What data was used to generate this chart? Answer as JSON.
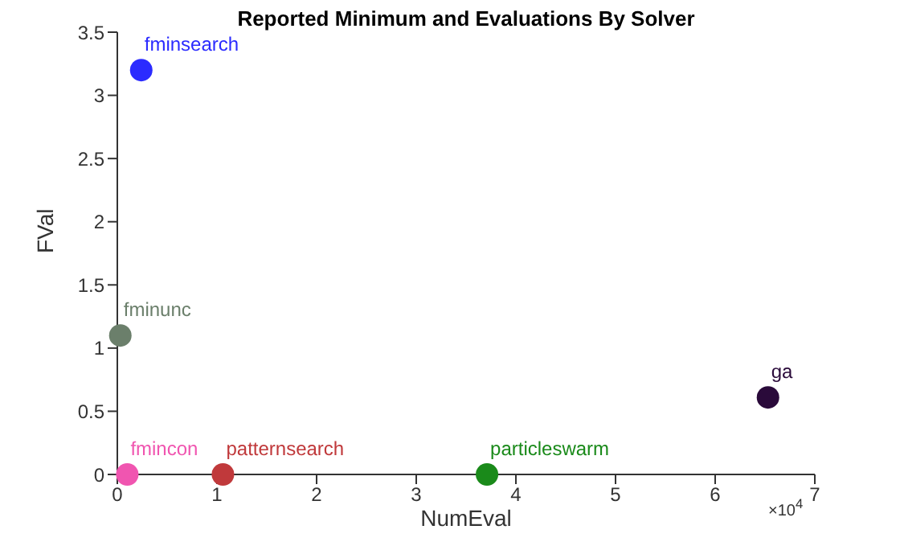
{
  "chart_data": {
    "type": "scatter",
    "title": "Reported Minimum and Evaluations By Solver",
    "xlabel": "NumEval",
    "ylabel": "FVal",
    "xlim": [
      0,
      7
    ],
    "xticks": [
      0,
      1,
      2,
      3,
      4,
      5,
      6,
      7
    ],
    "ylim": [
      0,
      3.5
    ],
    "yticks": [
      0,
      0.5,
      1,
      1.5,
      2,
      2.5,
      3,
      3.5
    ],
    "grid": false,
    "legend": false,
    "marker": "circle",
    "annotations": [
      "×10$^{4}$"
    ],
    "series": [
      {
        "name": "fminsearch",
        "color": "#2b2bff",
        "x": [
          0.24
        ],
        "values": [
          3.2
        ]
      },
      {
        "name": "fminunc",
        "color": "#6b7f6b",
        "x": [
          0.03
        ],
        "values": [
          1.1
        ]
      },
      {
        "name": "ga",
        "color": "#2a0a3a",
        "x": [
          6.53
        ],
        "values": [
          0.61
        ]
      },
      {
        "name": "fmincon",
        "color": "#f055b0",
        "x": [
          0.1
        ],
        "values": [
          0
        ]
      },
      {
        "name": "patternsearch",
        "color": "#c0393b",
        "x": [
          1.06
        ],
        "values": [
          0
        ]
      },
      {
        "name": "particleswarm",
        "color": "#1a8a1a",
        "x": [
          3.71
        ],
        "values": [
          0
        ]
      }
    ]
  }
}
